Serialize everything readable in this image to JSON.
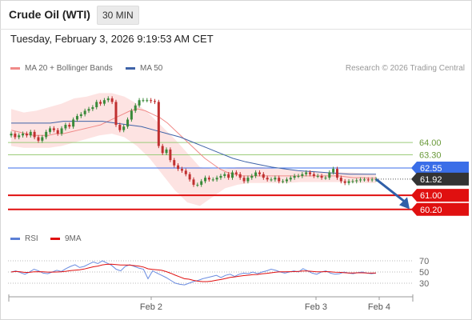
{
  "header": {
    "title": "Crude Oil (WTI)",
    "interval": "30 MIN",
    "datetime": "Tuesday, February 3, 2026 9:19:53 AM CET"
  },
  "legend": {
    "ma20": "MA 20 + Bollinger Bands",
    "ma50": "MA 50",
    "credit": "Research © 2026 Trading Central",
    "rsi": "RSI",
    "nine_ma": "9MA"
  },
  "colors": {
    "ma20": "#f08a88",
    "ma50": "#3f63a8",
    "bullish": "#3a8a3a",
    "bearish": "#c03030",
    "resistance": "#9ccc7a",
    "pivot": "#3a6ee8",
    "support": "#e01010",
    "last": "#333333",
    "arrow": "#2f5fa8"
  },
  "chart_data": {
    "type": "candlestick",
    "x_ticks": [
      "Feb 2",
      "Feb 3",
      "Feb 4"
    ],
    "levels": [
      {
        "value": 64.0,
        "label": "64.00",
        "kind": "resistance"
      },
      {
        "value": 63.3,
        "label": "63.30",
        "kind": "resistance"
      },
      {
        "value": 62.55,
        "label": "62.55",
        "kind": "pivot"
      },
      {
        "value": 61.92,
        "label": "61.92",
        "kind": "last"
      },
      {
        "value": 61.0,
        "label": "61.00",
        "kind": "support"
      },
      {
        "value": 60.2,
        "label": "60.20",
        "kind": "support"
      }
    ],
    "close": [
      64.5,
      64.3,
      64.4,
      64.5,
      64.4,
      64.6,
      64.3,
      64.1,
      64.3,
      64.6,
      64.8,
      64.7,
      64.5,
      64.8,
      65.0,
      64.9,
      65.3,
      65.5,
      65.6,
      65.8,
      65.9,
      66.0,
      66.3,
      66.2,
      66.4,
      66.5,
      66.3,
      65.0,
      64.7,
      64.9,
      65.3,
      65.8,
      66.1,
      66.4,
      66.4,
      66.4,
      66.35,
      66.3,
      63.8,
      63.4,
      63.6,
      63.0,
      62.7,
      62.5,
      62.4,
      62.2,
      61.9,
      61.6,
      61.6,
      61.8,
      62.0,
      61.9,
      61.9,
      62.0,
      62.1,
      62.2,
      62.0,
      62.3,
      62.2,
      62.0,
      61.8,
      62.0,
      62.1,
      62.3,
      62.2,
      62.0,
      61.9,
      61.9,
      62.0,
      61.8,
      61.8,
      61.9,
      62.0,
      62.1,
      62.1,
      62.2,
      62.3,
      62.2,
      62.1,
      62.1,
      62.0,
      62.0,
      62.3,
      62.5,
      62.0,
      61.8,
      61.7,
      61.8,
      61.8,
      61.85,
      61.9,
      61.9,
      61.88,
      61.9,
      61.92
    ],
    "ma20": [
      64.7,
      64.6,
      64.5,
      64.4,
      64.4,
      64.4,
      64.5,
      64.5,
      64.6,
      64.7,
      64.8,
      64.9,
      65.0,
      65.2,
      65.4,
      65.6,
      65.8,
      65.9,
      65.8,
      65.6,
      65.4,
      65.1,
      64.7,
      64.3,
      63.9,
      63.5,
      63.1,
      62.8,
      62.5,
      62.3,
      62.2,
      62.1,
      62.1,
      62.1,
      62.1,
      62.1,
      62.1,
      62.1,
      62.1,
      62.1,
      62.1,
      62.1,
      62.1,
      62.1,
      62.1,
      62.05,
      62.0,
      62.0,
      61.98,
      61.97
    ],
    "ma50": [
      65.1,
      65.1,
      65.1,
      65.1,
      65.2,
      65.2,
      65.2,
      65.2,
      65.1,
      65.0,
      64.9,
      64.7,
      64.5,
      64.3,
      64.0,
      63.7,
      63.4,
      63.1,
      62.9,
      62.75,
      62.6,
      62.5,
      62.4,
      62.35,
      62.3,
      62.25,
      62.2,
      62.2,
      62.2
    ],
    "bb_upper": [
      65.9,
      65.7,
      65.8,
      66.0,
      66.2,
      66.5,
      66.6,
      66.8,
      66.8,
      66.6,
      66.2,
      65.6,
      64.9,
      64.2,
      63.4,
      62.6,
      62.5,
      62.5,
      62.6,
      62.6,
      62.6,
      62.5,
      62.5,
      62.4,
      62.4,
      62.3,
      62.3,
      62.3,
      62.25,
      62.2
    ],
    "bb_lower": [
      63.8,
      63.7,
      63.7,
      63.7,
      63.8,
      64.0,
      64.2,
      64.4,
      64.5,
      64.3,
      63.8,
      63.1,
      62.2,
      61.3,
      60.6,
      60.4,
      60.9,
      61.4,
      61.6,
      61.7,
      61.7,
      61.7,
      61.7,
      61.75,
      61.75,
      61.75,
      61.75,
      61.75,
      61.7,
      61.7
    ],
    "rsi_axis": [
      70,
      50,
      30
    ],
    "rsi": [
      50,
      52,
      49,
      46,
      50,
      55,
      52,
      48,
      47,
      50,
      53,
      51,
      56,
      60,
      63,
      58,
      60,
      64,
      68,
      65,
      70,
      66,
      62,
      55,
      52,
      60,
      63,
      60,
      57,
      55,
      38,
      52,
      48,
      44,
      40,
      35,
      30,
      28,
      27,
      30,
      33,
      35,
      38,
      40,
      42,
      44,
      40,
      44,
      46,
      42,
      46,
      48,
      47,
      50,
      47,
      50,
      52,
      55,
      53,
      50,
      48,
      50,
      52,
      50,
      56,
      52,
      48,
      46,
      50,
      52,
      48,
      46,
      47,
      50,
      48,
      47,
      49,
      50,
      48,
      47,
      48
    ]
  }
}
